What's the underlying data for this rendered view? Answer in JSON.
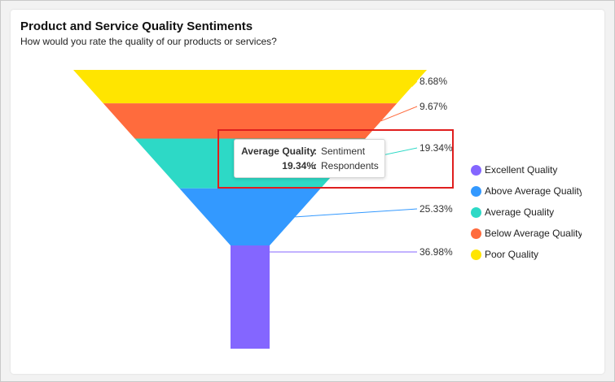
{
  "header": {
    "title": "Product and Service Quality Sentiments",
    "subtitle": "How would you rate the quality of our products or services?"
  },
  "chart_data": {
    "type": "funnel",
    "series": [
      {
        "name": "Poor Quality",
        "value": 8.68,
        "label": "8.68%",
        "color": "#FFE500"
      },
      {
        "name": "Below Average Quality",
        "value": 9.67,
        "label": "9.67%",
        "color": "#FF6B3D"
      },
      {
        "name": "Average Quality",
        "value": 19.34,
        "label": "19.34%",
        "color": "#2DD9C6"
      },
      {
        "name": "Above Average Quality",
        "value": 25.33,
        "label": "25.33%",
        "color": "#3399FF"
      },
      {
        "name": "Excellent Quality",
        "value": 36.98,
        "label": "36.98%",
        "color": "#8466FF"
      }
    ],
    "legend_position": "right"
  },
  "legend": {
    "items": [
      {
        "label": "Excellent Quality",
        "color": "#8466FF"
      },
      {
        "label": "Above Average Quality",
        "color": "#3399FF"
      },
      {
        "label": "Average Quality",
        "color": "#2DD9C6"
      },
      {
        "label": "Below Average Quality",
        "color": "#FF6B3D"
      },
      {
        "label": "Poor Quality",
        "color": "#FFE500"
      }
    ]
  },
  "tooltip": {
    "row1_key": "Average Quality",
    "row1_value": "Sentiment",
    "row2_key": "19.34%",
    "row2_value": "Respondents",
    "separator": ":"
  }
}
